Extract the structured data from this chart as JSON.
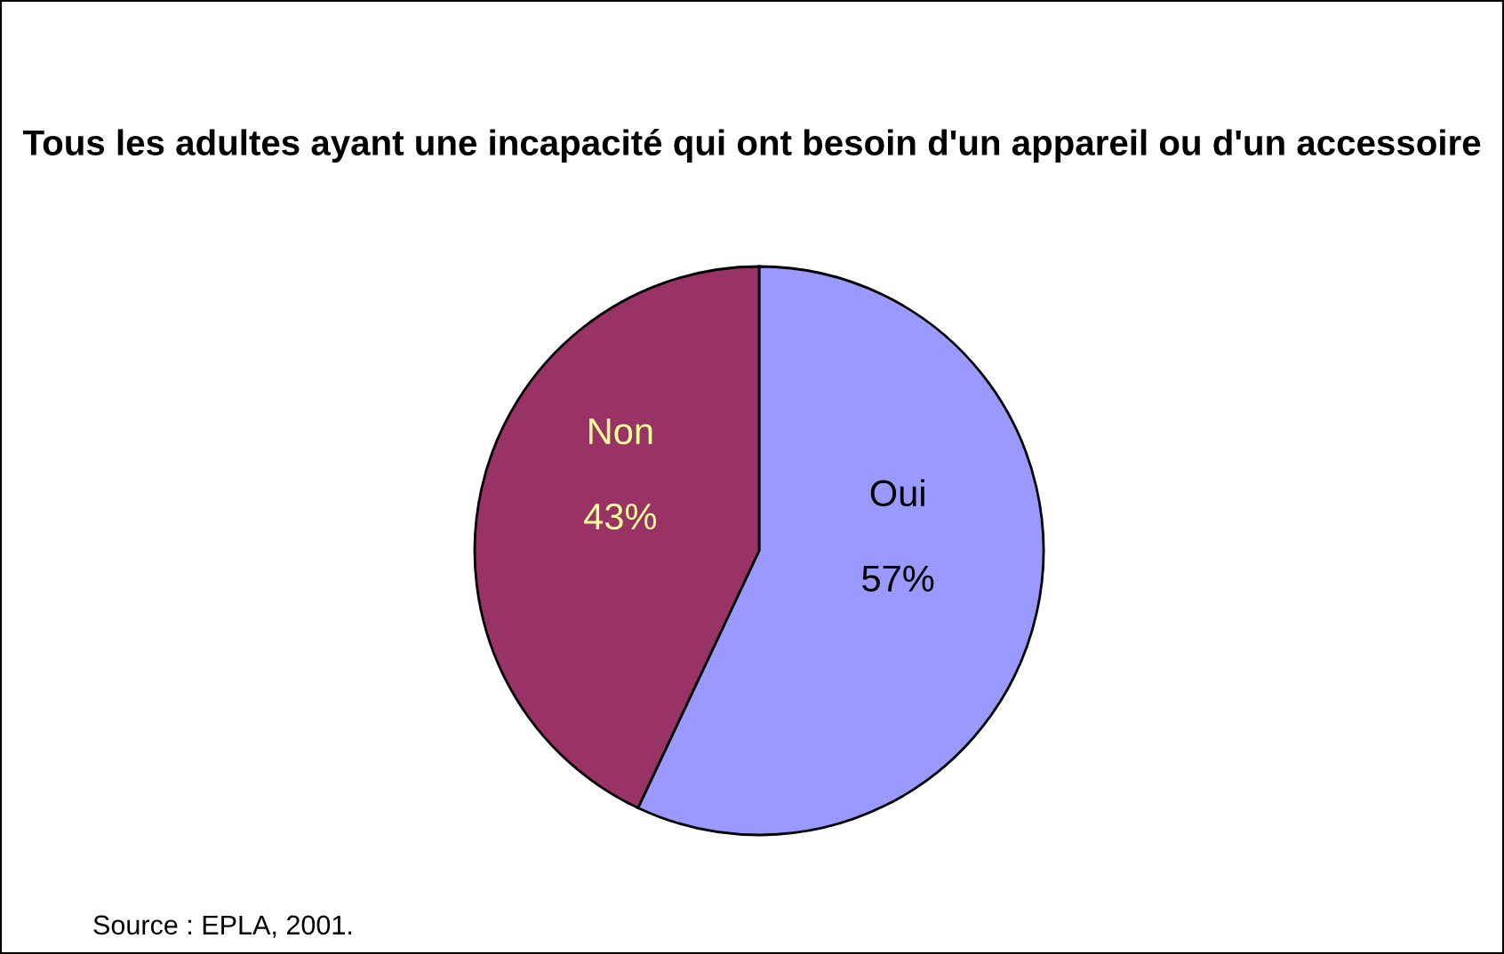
{
  "chart_data": {
    "type": "pie",
    "title": "Tous les adultes ayant une incapacité qui ont besoin d'un appareil ou d'un accessoire",
    "categories": [
      "Oui",
      "Non"
    ],
    "values": [
      57,
      43
    ],
    "value_labels": [
      "57%",
      "43%"
    ],
    "colors": [
      "#9999ff",
      "#993366"
    ],
    "legend": false,
    "annotations": [
      "Source : EPLA, 2001."
    ]
  }
}
